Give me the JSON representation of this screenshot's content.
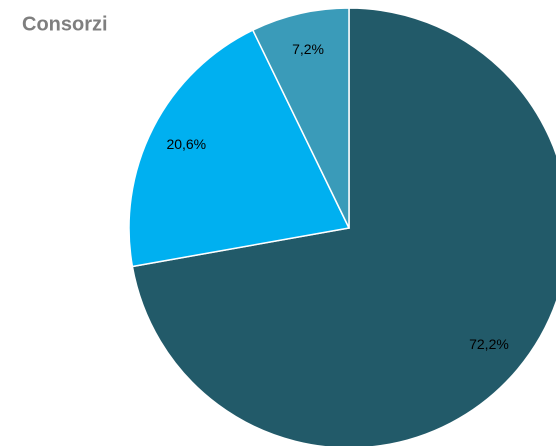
{
  "chart_data": {
    "type": "pie",
    "title": "Consorzi",
    "values": [
      72.2,
      20.6,
      7.2
    ],
    "value_labels": [
      "72,2%",
      "20,6%",
      "7,2%"
    ],
    "colors": [
      "#225a69",
      "#00b0f0",
      "#3a9bb9"
    ]
  }
}
